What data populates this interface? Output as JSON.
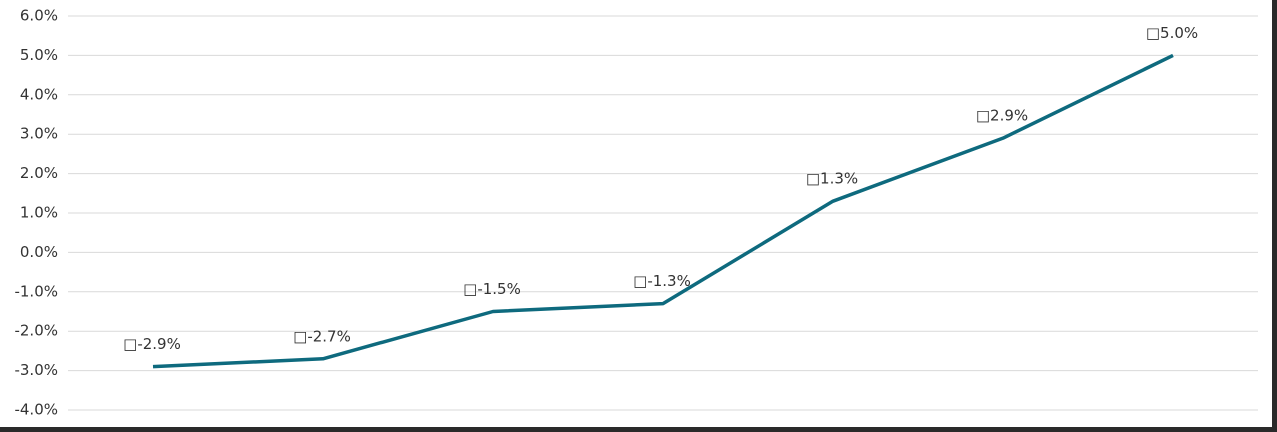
{
  "chart_data": {
    "type": "line",
    "categories": [
      null,
      null,
      null,
      null,
      null,
      null,
      null
    ],
    "values": [
      -2.9,
      -2.7,
      -1.5,
      -1.3,
      1.3,
      2.9,
      5.0
    ],
    "value_labels": [
      "□-2.9%",
      "□-2.7%",
      "□-1.5%",
      "□-1.3%",
      "□1.3%",
      "□2.9%",
      "□5.0%"
    ],
    "color": "#0e6a7e",
    "ylim": [
      -4,
      6
    ],
    "yticks": [
      {
        "value": -4,
        "label": "-4.0%"
      },
      {
        "value": -3,
        "label": "-3.0%"
      },
      {
        "value": -2,
        "label": "-2.0%"
      },
      {
        "value": -1,
        "label": "-1.0%"
      },
      {
        "value": 0,
        "label": "0.0%"
      },
      {
        "value": 1,
        "label": "1.0%"
      },
      {
        "value": 2,
        "label": "2.0%"
      },
      {
        "value": 3,
        "label": "3.0%"
      },
      {
        "value": 4,
        "label": "4.0%"
      },
      {
        "value": 5,
        "label": "5.0%"
      },
      {
        "value": 6,
        "label": "6.0%"
      }
    ],
    "grid": true
  }
}
